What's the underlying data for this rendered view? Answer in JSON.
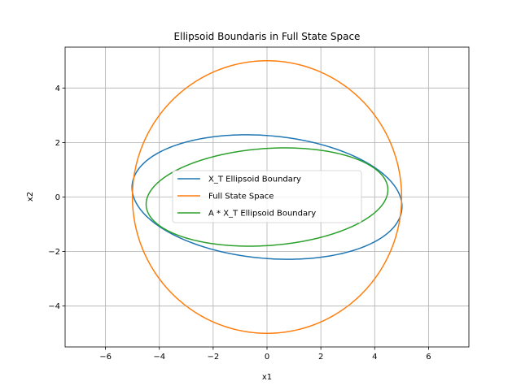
{
  "chart_data": {
    "type": "line",
    "title": "Ellipsoid Boundaris in Full State Space",
    "xlabel": "x1",
    "ylabel": "x2",
    "xlim": [
      -7.5,
      7.5
    ],
    "ylim": [
      -5.5,
      5.5
    ],
    "xticks": [
      -6,
      -4,
      -2,
      0,
      2,
      4,
      6
    ],
    "yticks": [
      -4,
      -2,
      0,
      2,
      4
    ],
    "xtick_labels": [
      "−6",
      "−4",
      "−2",
      "0",
      "2",
      "4",
      "6"
    ],
    "ytick_labels": [
      "−4",
      "−2",
      "0",
      "2",
      "4"
    ],
    "grid": true,
    "legend_position": "center",
    "series": [
      {
        "name": "X_T Ellipsoid Boundary",
        "color": "#1f77b4",
        "shape": "ellipse",
        "center": [
          0,
          0
        ],
        "semi_major": 5.03,
        "semi_minor": 2.25,
        "tilt_deg": -5
      },
      {
        "name": "Full State Space",
        "color": "#ff7f0e",
        "shape": "ellipse",
        "center": [
          0,
          0
        ],
        "semi_major": 5.0,
        "semi_minor": 5.0,
        "tilt_deg": 0
      },
      {
        "name": "A * X_T Ellipsoid Boundary",
        "color": "#2ca02c",
        "shape": "ellipse",
        "center": [
          0,
          0
        ],
        "semi_major": 4.5,
        "semi_minor": 1.78,
        "tilt_deg": 4
      }
    ]
  }
}
